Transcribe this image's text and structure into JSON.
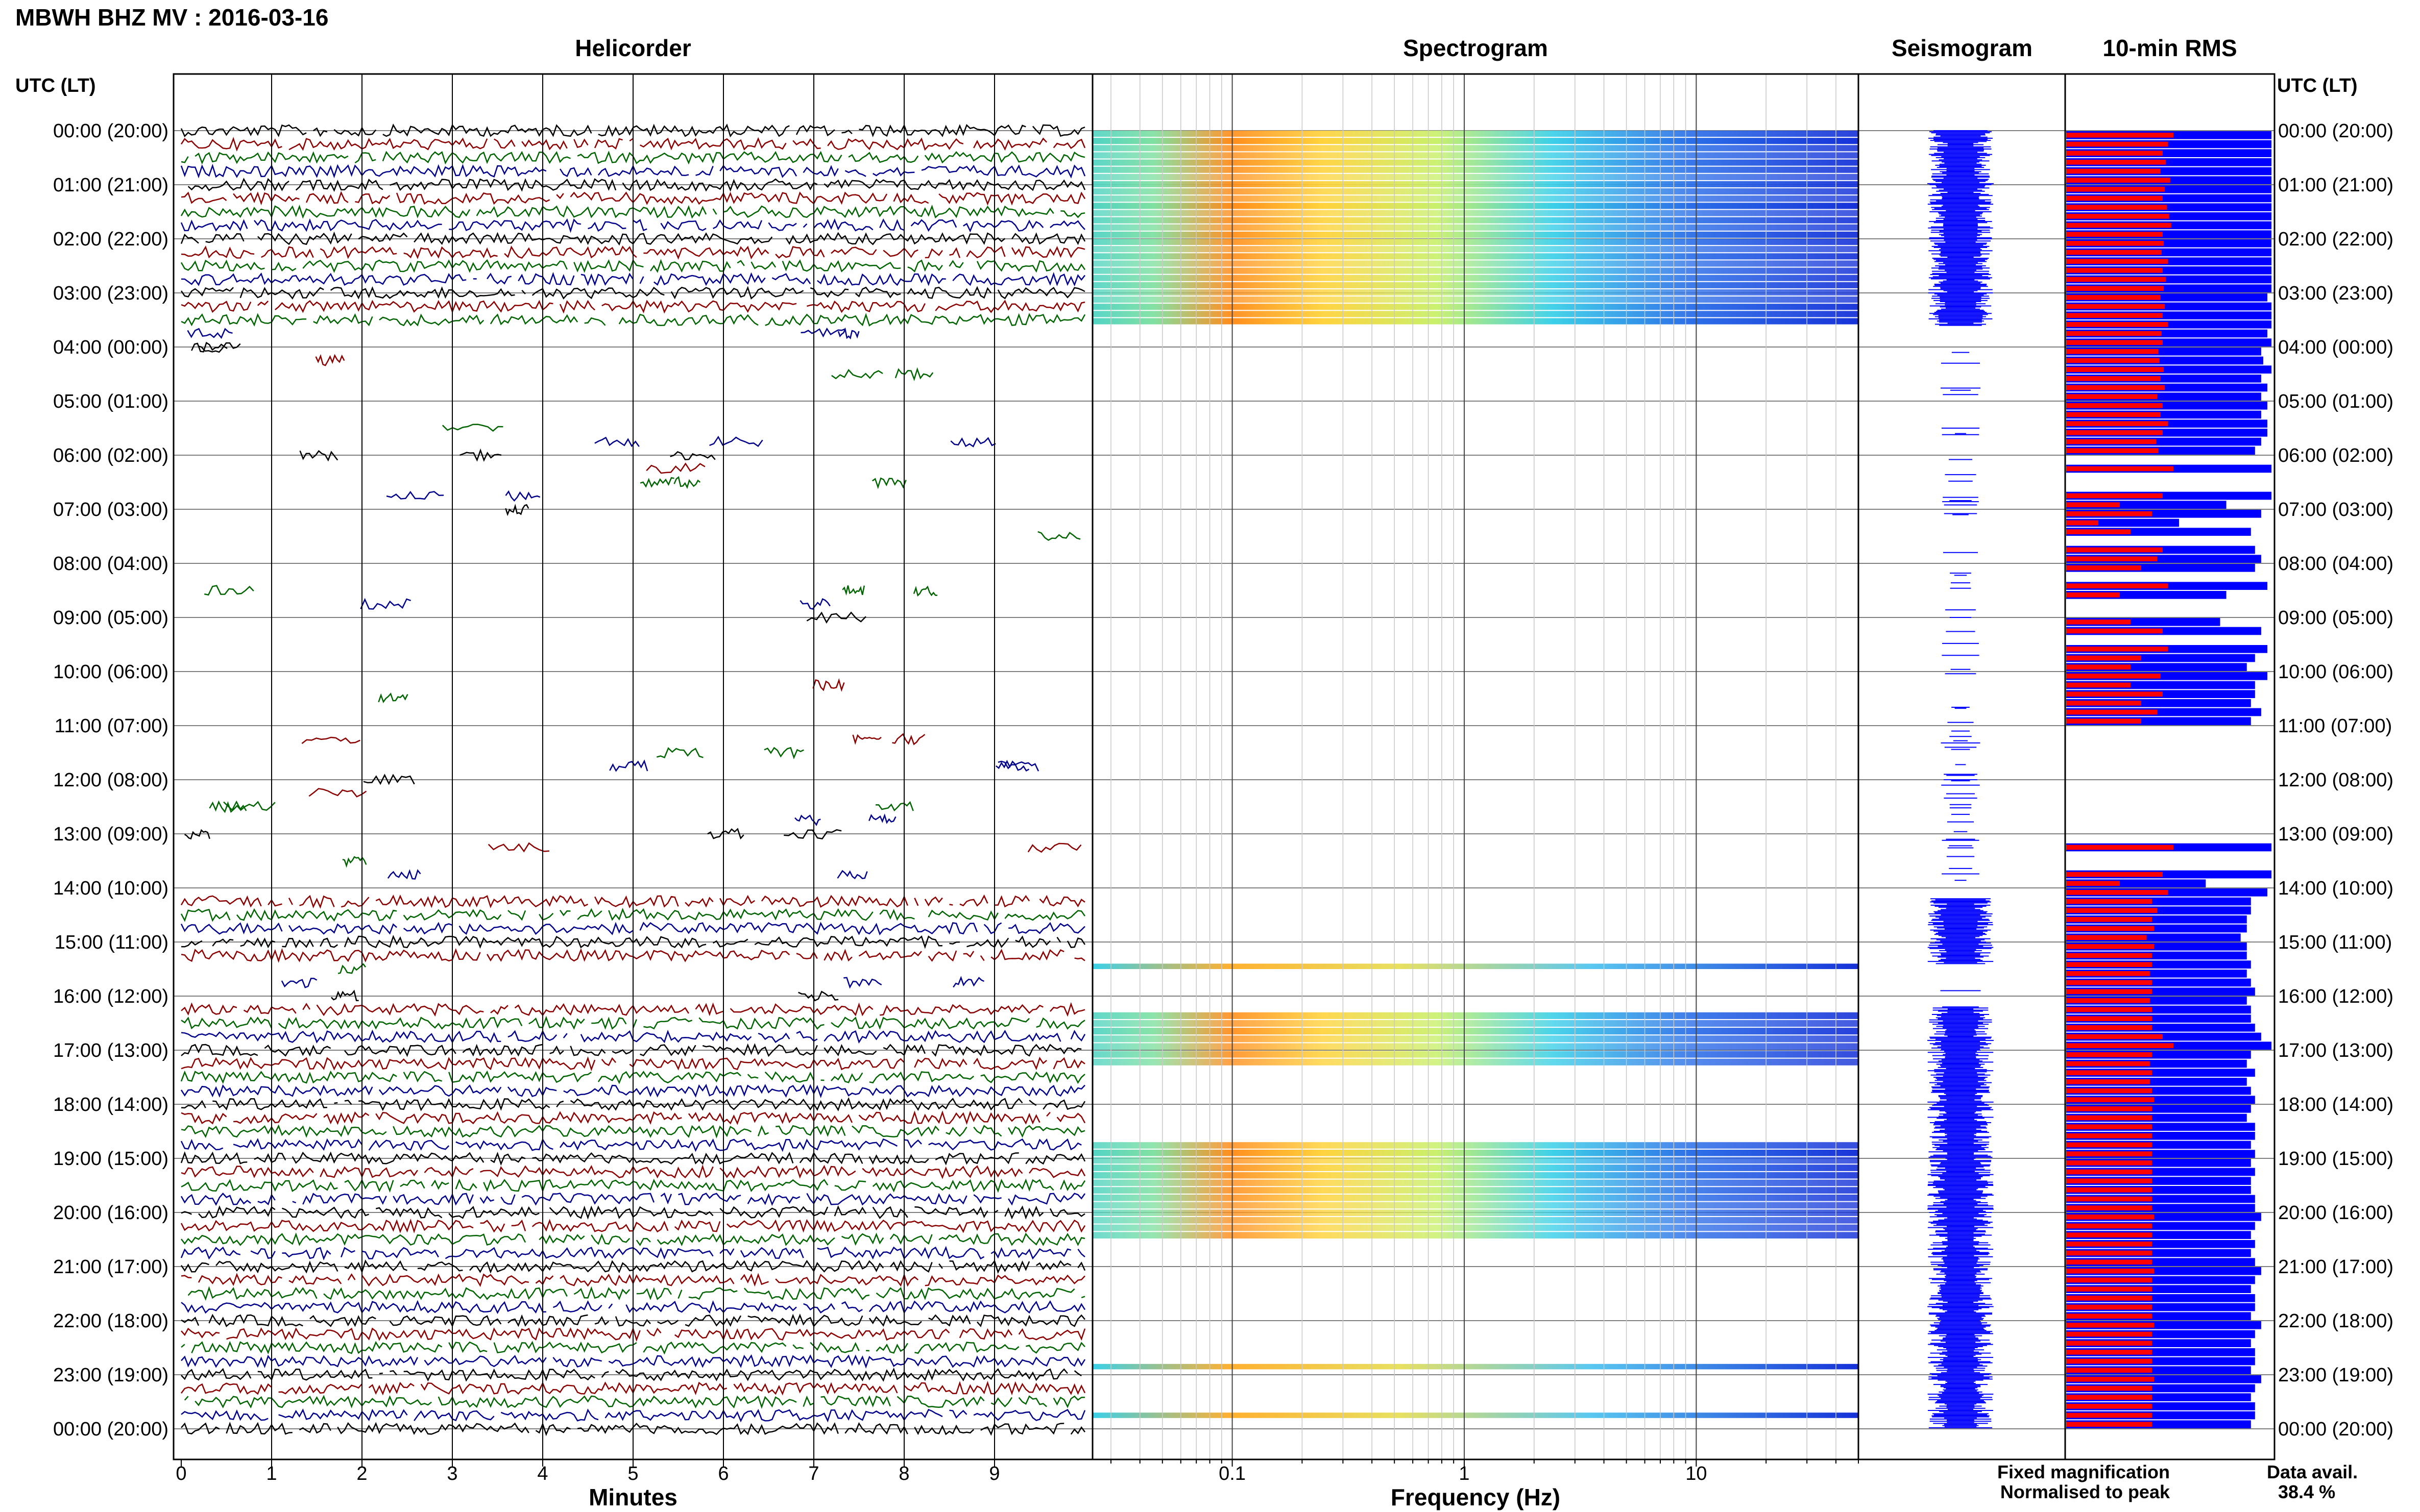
{
  "page": {
    "title": "MBWH BHZ MV : 2016-03-16",
    "left_axis_title": "UTC (LT)",
    "right_axis_title": "UTC (LT)"
  },
  "panels": {
    "helicorder": "Helicorder",
    "spectrogram": "Spectrogram",
    "seismogram": "Seismogram",
    "rms": "10-min RMS"
  },
  "footer": {
    "minutes_label": "Minutes",
    "frequency_label": "Frequency (Hz)",
    "legend_fixed": "Fixed magnification",
    "legend_normalised": "Normalised to peak",
    "data_avail_label": "Data avail.",
    "data_avail_value": "38.4 %"
  },
  "colors": {
    "trace_cycle": [
      "#000000",
      "#8b0000",
      "#006400",
      "#00008b"
    ],
    "fixed": "#0000ff",
    "normalised": "#ff0000",
    "gridline": "#c8c8c8"
  },
  "chart_data": {
    "type": "heatmap",
    "time_labels": [
      "00:00 (20:00)",
      "01:00 (21:00)",
      "02:00 (22:00)",
      "03:00 (23:00)",
      "04:00 (00:00)",
      "05:00 (01:00)",
      "06:00 (02:00)",
      "07:00 (03:00)",
      "08:00 (04:00)",
      "09:00 (05:00)",
      "10:00 (06:00)",
      "11:00 (07:00)",
      "12:00 (08:00)",
      "13:00 (09:00)",
      "14:00 (10:00)",
      "15:00 (11:00)",
      "16:00 (12:00)",
      "17:00 (13:00)",
      "18:00 (14:00)",
      "19:00 (15:00)",
      "20:00 (16:00)",
      "21:00 (17:00)",
      "22:00 (18:00)",
      "23:00 (19:00)",
      "00:00 (20:00)"
    ],
    "minute_ticks": [
      "0",
      "1",
      "2",
      "3",
      "4",
      "5",
      "6",
      "7",
      "8",
      "9"
    ],
    "frequency_ticks": [
      "0.1",
      "1",
      "10"
    ],
    "frequency_range_hz": [
      0.025,
      50
    ],
    "activity_ranges_hours": [
      [
        0,
        3.6
      ],
      [
        14.2,
        15.4
      ],
      [
        16.2,
        24
      ]
    ],
    "spectrogram_bands_hours": [
      [
        0,
        3.6
      ],
      [
        15.4,
        15.5
      ],
      [
        16.3,
        17.3
      ],
      [
        18.7,
        20.5
      ],
      [
        22.8,
        22.9
      ],
      [
        23.7,
        23.8
      ]
    ],
    "rms_normalised": [
      1.0,
      0.95,
      0.9,
      0.93,
      0.88,
      0.97,
      0.92,
      0.9,
      0.94,
      0.96,
      0.98,
      0.9,
      0.91,
      0.89,
      0.95,
      0.9,
      0.93,
      0.91,
      0.88,
      0.92,
      0.9,
      0.95,
      0.89,
      0.9,
      0.86,
      0.87,
      0.91,
      0.88,
      0.92,
      0.85,
      0.9,
      0.88,
      0.95,
      0.9,
      0.84,
      0.86,
      0.0,
      1.0,
      0.0,
      0.0,
      0.9,
      0.5,
      0.8,
      0.3,
      0.6,
      0.0,
      0.9,
      0.85,
      0.7,
      0.0,
      0.95,
      0.5,
      0.0,
      0.0,
      0.6,
      0.9,
      0.0,
      0.95,
      0.7,
      0.6,
      0.88,
      0.6,
      0.9,
      0.7,
      0.85,
      0.7,
      0.0,
      0.0,
      0.0,
      0.0,
      0.0,
      0.0,
      0.0,
      0.0,
      0.0,
      0.0,
      0.0,
      0.0,
      0.0,
      1.0,
      0.0,
      0.0,
      0.9,
      0.5,
      0.95,
      0.8,
      0.85,
      0.8,
      0.82,
      0.75,
      0.82,
      0.8,
      0.8,
      0.78,
      0.8,
      0.8,
      0.78,
      0.8,
      0.8,
      0.8,
      0.9,
      1.0,
      0.8,
      0.78,
      0.8,
      0.78,
      0.8,
      0.82,
      0.8,
      0.8,
      0.8,
      0.8,
      0.8,
      0.8,
      0.8,
      0.8,
      0.8,
      0.8,
      0.8,
      0.8,
      0.82,
      0.8,
      0.8,
      0.8,
      0.8,
      0.8,
      0.82,
      0.8,
      0.8,
      0.8,
      0.8,
      0.8,
      0.82,
      0.8,
      0.8,
      0.8,
      0.8,
      0.8,
      0.82,
      0.8,
      0.8,
      0.8,
      0.8,
      0.8
    ],
    "rms_fixed": [
      1.0,
      1.0,
      1.0,
      1.0,
      1.0,
      1.0,
      1.0,
      1.0,
      1.0,
      1.0,
      1.0,
      1.0,
      1.0,
      1.0,
      1.0,
      1.0,
      1.0,
      1.0,
      0.98,
      1.0,
      1.0,
      1.0,
      0.98,
      1.0,
      0.95,
      0.96,
      1.0,
      0.95,
      0.98,
      0.95,
      0.98,
      0.95,
      0.98,
      0.98,
      0.95,
      0.92,
      0.0,
      1.0,
      0.0,
      0.0,
      1.0,
      0.78,
      0.95,
      0.55,
      0.9,
      0.0,
      0.92,
      0.95,
      0.92,
      0.0,
      0.98,
      0.78,
      0.0,
      0.0,
      0.75,
      0.95,
      0.0,
      0.98,
      0.92,
      0.88,
      0.98,
      0.92,
      0.92,
      0.9,
      0.95,
      0.9,
      0.0,
      0.0,
      0.0,
      0.0,
      0.0,
      0.0,
      0.0,
      0.0,
      0.0,
      0.0,
      0.0,
      0.0,
      0.0,
      1.0,
      0.0,
      0.0,
      1.0,
      0.68,
      0.98,
      0.9,
      0.9,
      0.88,
      0.88,
      0.85,
      0.88,
      0.88,
      0.9,
      0.88,
      0.9,
      0.92,
      0.88,
      0.9,
      0.9,
      0.92,
      0.95,
      1.0,
      0.9,
      0.88,
      0.92,
      0.88,
      0.9,
      0.92,
      0.9,
      0.88,
      0.92,
      0.92,
      0.9,
      0.92,
      0.9,
      0.92,
      0.9,
      0.9,
      0.92,
      0.92,
      0.95,
      0.92,
      0.9,
      0.92,
      0.9,
      0.92,
      0.95,
      0.92,
      0.9,
      0.92,
      0.92,
      0.9,
      0.95,
      0.92,
      0.9,
      0.92,
      0.92,
      0.9,
      0.95,
      0.92,
      0.9,
      0.92,
      0.92,
      0.9
    ]
  }
}
